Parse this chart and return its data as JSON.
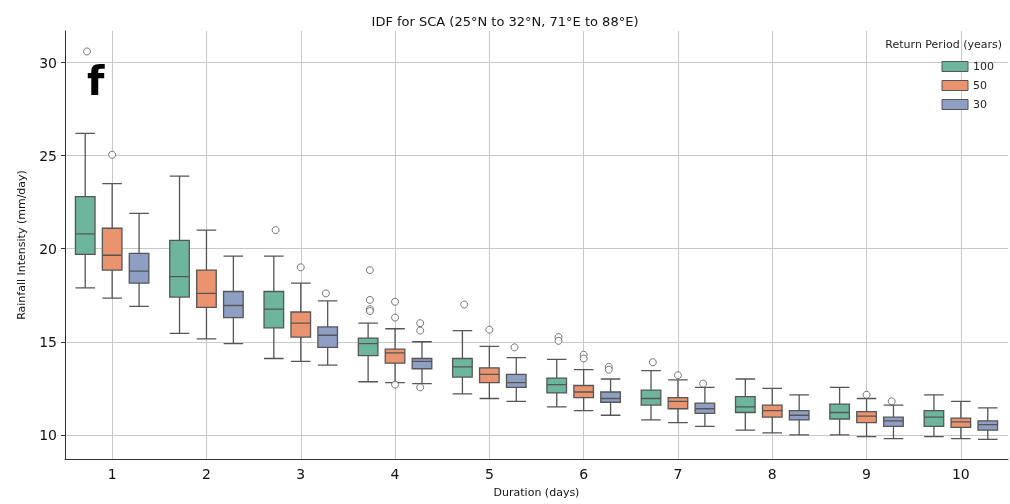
{
  "chart_data": {
    "type": "box",
    "title": "IDF for SCA (25°N to 32°N, 71°E to 88°E)",
    "xlabel": "Duration (days)",
    "ylabel": "Rainfall Intensity (mm/day)",
    "legend_title": "Return Period (years)",
    "annotations": [
      "f"
    ],
    "categories": [
      "1",
      "2",
      "3",
      "4",
      "5",
      "6",
      "7",
      "8",
      "9",
      "10"
    ],
    "ylim": [
      8.7,
      31.7
    ],
    "yticks": [
      10,
      15,
      20,
      25,
      30
    ],
    "grid": true,
    "legend": "top right",
    "series": [
      {
        "name": "100",
        "color": "#6db69d",
        "boxes": [
          {
            "low": 17.9,
            "q1": 19.7,
            "median": 20.8,
            "q3": 22.8,
            "high": 26.2,
            "outliers": [
              30.6
            ]
          },
          {
            "low": 15.45,
            "q1": 17.4,
            "median": 18.5,
            "q3": 20.45,
            "high": 23.9
          },
          {
            "low": 14.1,
            "q1": 15.75,
            "median": 16.75,
            "q3": 17.7,
            "high": 19.6,
            "outliers": [
              21.0
            ]
          },
          {
            "low": 12.85,
            "q1": 14.25,
            "median": 14.9,
            "q3": 15.2,
            "high": 16.0,
            "outliers": [
              18.85,
              17.25,
              16.75,
              16.65
            ]
          },
          {
            "low": 12.2,
            "q1": 13.1,
            "median": 13.65,
            "q3": 14.1,
            "high": 15.6,
            "outliers": [
              17.0
            ]
          },
          {
            "low": 11.5,
            "q1": 12.25,
            "median": 12.7,
            "q3": 13.05,
            "high": 14.05,
            "outliers": [
              15.25,
              15.05
            ]
          },
          {
            "low": 10.8,
            "q1": 11.6,
            "median": 11.95,
            "q3": 12.4,
            "high": 13.45,
            "outliers": [
              13.9
            ]
          },
          {
            "low": 10.25,
            "q1": 11.2,
            "median": 11.5,
            "q3": 12.05,
            "high": 13.0
          },
          {
            "low": 10.0,
            "q1": 10.85,
            "median": 11.2,
            "q3": 11.65,
            "high": 12.55
          },
          {
            "low": 9.9,
            "q1": 10.45,
            "median": 10.95,
            "q3": 11.3,
            "high": 12.15
          }
        ]
      },
      {
        "name": "50",
        "color": "#e9936f",
        "boxes": [
          {
            "low": 17.35,
            "q1": 18.85,
            "median": 19.65,
            "q3": 21.1,
            "high": 23.5,
            "outliers": [
              25.05
            ]
          },
          {
            "low": 15.15,
            "q1": 16.85,
            "median": 17.6,
            "q3": 18.85,
            "high": 21.0
          },
          {
            "low": 13.95,
            "q1": 15.25,
            "median": 16.0,
            "q3": 16.6,
            "high": 18.15,
            "outliers": [
              19.0
            ]
          },
          {
            "low": 12.8,
            "q1": 13.85,
            "median": 14.4,
            "q3": 14.6,
            "high": 15.7,
            "outliers": [
              17.15,
              16.3,
              12.7
            ]
          },
          {
            "low": 11.95,
            "q1": 12.8,
            "median": 13.25,
            "q3": 13.6,
            "high": 14.75,
            "outliers": [
              15.65
            ]
          },
          {
            "low": 11.3,
            "q1": 12.0,
            "median": 12.3,
            "q3": 12.65,
            "high": 13.5,
            "outliers": [
              14.3,
              14.1
            ]
          },
          {
            "low": 10.65,
            "q1": 11.4,
            "median": 11.8,
            "q3": 12.0,
            "high": 12.95,
            "outliers": [
              13.2
            ]
          },
          {
            "low": 10.1,
            "q1": 10.95,
            "median": 11.3,
            "q3": 11.6,
            "high": 12.5
          },
          {
            "low": 9.9,
            "q1": 10.65,
            "median": 11.0,
            "q3": 11.25,
            "high": 11.95,
            "outliers": [
              12.15
            ]
          },
          {
            "low": 9.8,
            "q1": 10.4,
            "median": 10.7,
            "q3": 10.9,
            "high": 11.8
          }
        ]
      },
      {
        "name": "30",
        "color": "#8f9fc4",
        "boxes": [
          {
            "low": 16.9,
            "q1": 18.15,
            "median": 18.8,
            "q3": 19.75,
            "high": 21.9
          },
          {
            "low": 14.9,
            "q1": 16.3,
            "median": 16.95,
            "q3": 17.7,
            "high": 19.6
          },
          {
            "low": 13.75,
            "q1": 14.7,
            "median": 15.35,
            "q3": 15.8,
            "high": 17.2,
            "outliers": [
              17.6
            ]
          },
          {
            "low": 12.75,
            "q1": 13.55,
            "median": 13.95,
            "q3": 14.1,
            "high": 15.0,
            "outliers": [
              16.0,
              15.6,
              12.55
            ]
          },
          {
            "low": 11.8,
            "q1": 12.55,
            "median": 12.8,
            "q3": 13.25,
            "high": 14.15,
            "outliers": [
              14.7
            ]
          },
          {
            "low": 11.05,
            "q1": 11.75,
            "median": 11.95,
            "q3": 12.3,
            "high": 13.0,
            "outliers": [
              13.65,
              13.5
            ]
          },
          {
            "low": 10.45,
            "q1": 11.15,
            "median": 11.4,
            "q3": 11.7,
            "high": 12.55,
            "outliers": [
              12.75
            ]
          },
          {
            "low": 10.0,
            "q1": 10.8,
            "median": 11.05,
            "q3": 11.3,
            "high": 12.15
          },
          {
            "low": 9.8,
            "q1": 10.45,
            "median": 10.75,
            "q3": 10.95,
            "high": 11.6,
            "outliers": [
              11.8
            ]
          },
          {
            "low": 9.75,
            "q1": 10.25,
            "median": 10.55,
            "q3": 10.75,
            "high": 11.45
          }
        ]
      }
    ]
  }
}
